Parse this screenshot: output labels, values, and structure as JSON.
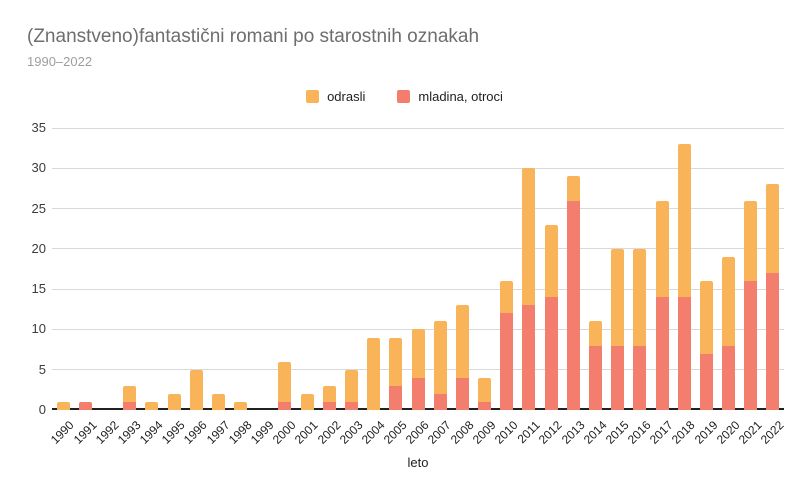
{
  "chart_data": {
    "type": "bar",
    "stacked": true,
    "title": "(Znanstveno)fantastični romani po starostnih oznakah",
    "subtitle": "1990–2022",
    "xlabel": "leto",
    "ylabel": "",
    "ylim": [
      0,
      35
    ],
    "yticks": [
      0,
      5,
      10,
      15,
      20,
      25,
      30,
      35
    ],
    "grid": true,
    "legend_position": "top-center",
    "categories": [
      1990,
      1991,
      1992,
      1993,
      1994,
      1995,
      1996,
      1997,
      1998,
      1999,
      2000,
      2001,
      2002,
      2003,
      2004,
      2005,
      2006,
      2007,
      2008,
      2009,
      2010,
      2011,
      2012,
      2013,
      2014,
      2015,
      2016,
      2017,
      2018,
      2019,
      2020,
      2021,
      2022
    ],
    "series": [
      {
        "name": "odrasli",
        "color": "#f9b45a",
        "stack_order": "top",
        "values": [
          1,
          0,
          0,
          2,
          1,
          2,
          5,
          2,
          1,
          0,
          5,
          2,
          2,
          4,
          9,
          6,
          6,
          9,
          9,
          3,
          4,
          17,
          9,
          3,
          3,
          12,
          12,
          12,
          19,
          9,
          11,
          10,
          11
        ]
      },
      {
        "name": "mladina, otroci",
        "color": "#f47e6d",
        "stack_order": "bottom",
        "values": [
          0,
          1,
          0,
          1,
          0,
          0,
          0,
          0,
          0,
          0,
          1,
          0,
          1,
          1,
          0,
          3,
          4,
          2,
          4,
          1,
          12,
          13,
          14,
          26,
          8,
          8,
          8,
          14,
          14,
          7,
          8,
          16,
          17
        ]
      }
    ],
    "totals": [
      1,
      1,
      0,
      3,
      1,
      2,
      5,
      2,
      1,
      0,
      6,
      2,
      3,
      5,
      9,
      9,
      10,
      11,
      13,
      4,
      16,
      30,
      23,
      29,
      11,
      20,
      20,
      26,
      33,
      16,
      19,
      26,
      28
    ],
    "axis_colors": {
      "gridline": "#d9d9d9",
      "baseline": "#212121"
    }
  }
}
